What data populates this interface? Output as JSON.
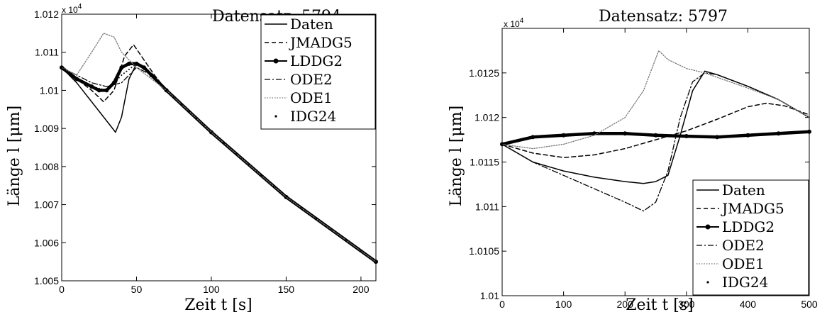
{
  "chart_data": [
    {
      "type": "line",
      "title": "Datensatz: 5794",
      "xlabel": "Zeit t [s]",
      "ylabel": "Länge l [μm]",
      "xlim": [
        0,
        210
      ],
      "ylim": [
        10050,
        10120
      ],
      "y_exponent_label": "x 10",
      "y_exponent_power": "4",
      "xticks": [
        0,
        50,
        100,
        150,
        200
      ],
      "xtick_labels": [
        "0",
        "50",
        "100",
        "150",
        "200"
      ],
      "yticks": [
        10050,
        10060,
        10070,
        10080,
        10090,
        10100,
        10110,
        10120
      ],
      "ytick_labels": [
        "1.005",
        "1.006",
        "1.007",
        "1.008",
        "1.009",
        "1.01",
        "1.011",
        "1.012"
      ],
      "grid": false,
      "legend_position": "top-right",
      "series": [
        {
          "name": "Daten",
          "style": "solid",
          "x": [
            0,
            10,
            20,
            30,
            36,
            40,
            45,
            50,
            55,
            60,
            70,
            100,
            150,
            210
          ],
          "y": [
            10106,
            10102,
            10097,
            10092,
            10089,
            10093,
            10103,
            10107,
            10106,
            10104,
            10100,
            10089,
            10072,
            10055
          ]
        },
        {
          "name": "JMADG5",
          "style": "dash",
          "x": [
            0,
            10,
            20,
            28,
            35,
            42,
            48,
            55,
            62,
            70,
            100,
            150,
            210
          ],
          "y": [
            10106,
            10103,
            10100,
            10097,
            10100,
            10109,
            10112,
            10108,
            10104,
            10100,
            10089,
            10072,
            10055
          ]
        },
        {
          "name": "LDDG2",
          "style": "thick",
          "x": [
            0,
            10,
            20,
            25,
            30,
            35,
            40,
            45,
            50,
            55,
            60,
            70,
            100,
            150,
            210
          ],
          "y": [
            10106,
            10103,
            10101,
            10100,
            10100,
            10102,
            10106,
            10107,
            10107,
            10106,
            10104,
            10100,
            10089,
            10072,
            10055
          ]
        },
        {
          "name": "ODE2",
          "style": "dashdot",
          "x": [
            0,
            10,
            20,
            30,
            40,
            50,
            60,
            70,
            100,
            150,
            210
          ],
          "y": [
            10106,
            10104,
            10102,
            10101,
            10102,
            10106,
            10104,
            10100,
            10089,
            10072,
            10055
          ]
        },
        {
          "name": "ODE1",
          "style": "dotted",
          "x": [
            0,
            10,
            20,
            28,
            35,
            40,
            50,
            60,
            70,
            100,
            150,
            210
          ],
          "y": [
            10106,
            10104,
            10110,
            10115,
            10114,
            10110,
            10106,
            10103,
            10100,
            10089,
            10072,
            10055
          ]
        },
        {
          "name": "IDG24",
          "style": "points",
          "x": [
            0,
            10,
            20,
            30,
            40,
            50,
            60,
            70,
            100,
            150,
            210
          ],
          "y": [
            10106,
            10103,
            10101,
            10100,
            10104,
            10107,
            10104,
            10100,
            10089,
            10072,
            10055
          ]
        }
      ]
    },
    {
      "type": "line",
      "title": "Datensatz: 5797",
      "xlabel": "Zeit t [s]",
      "ylabel": "Länge l [μm]",
      "xlim": [
        0,
        500
      ],
      "ylim": [
        10100,
        10130
      ],
      "y_exponent_label": "x 10",
      "y_exponent_power": "4",
      "xticks": [
        0,
        100,
        200,
        300,
        400,
        500
      ],
      "xtick_labels": [
        "0",
        "100",
        "200",
        "300",
        "400",
        "500"
      ],
      "yticks": [
        10100,
        10105,
        10110,
        10115,
        10120,
        10125
      ],
      "ytick_labels": [
        "1.01",
        "1.0105",
        "1.011",
        "1.0115",
        "1.012",
        "1.0125"
      ],
      "grid": false,
      "legend_position": "bottom-right",
      "series": [
        {
          "name": "Daten",
          "style": "solid",
          "x": [
            0,
            50,
            100,
            150,
            200,
            230,
            250,
            270,
            290,
            310,
            330,
            350,
            400,
            450,
            500
          ],
          "y": [
            10117,
            10115,
            10114,
            10113.3,
            10112.8,
            10112.6,
            10112.8,
            10113.5,
            10118,
            10123,
            10125.2,
            10124.8,
            10123.5,
            10122,
            10120
          ]
        },
        {
          "name": "JMADG5",
          "style": "dash",
          "x": [
            0,
            50,
            100,
            150,
            200,
            250,
            300,
            350,
            400,
            430,
            460,
            500
          ],
          "y": [
            10117,
            10116,
            10115.5,
            10115.8,
            10116.5,
            10117.5,
            10118.5,
            10119.8,
            10121.2,
            10121.6,
            10121.3,
            10120.3
          ]
        },
        {
          "name": "LDDG2",
          "style": "thick",
          "x": [
            0,
            50,
            100,
            150,
            200,
            250,
            300,
            350,
            400,
            450,
            500
          ],
          "y": [
            10117,
            10117.8,
            10118,
            10118.2,
            10118.2,
            10118,
            10117.9,
            10117.8,
            10118,
            10118.2,
            10118.4
          ]
        },
        {
          "name": "ODE2",
          "style": "dashdot",
          "x": [
            0,
            50,
            100,
            150,
            200,
            230,
            250,
            270,
            290,
            310,
            330,
            350,
            400,
            450,
            500
          ],
          "y": [
            10117,
            10115,
            10113.5,
            10112,
            10110.5,
            10109.5,
            10110.5,
            10114,
            10120,
            10124,
            10125,
            10124.8,
            10123.5,
            10122,
            10120
          ]
        },
        {
          "name": "ODE1",
          "style": "dotted",
          "x": [
            0,
            50,
            100,
            150,
            200,
            230,
            255,
            270,
            300,
            330,
            350,
            400,
            450,
            500
          ],
          "y": [
            10117,
            10116.5,
            10117,
            10118,
            10120,
            10123,
            10127.5,
            10126.5,
            10125.5,
            10125,
            10124.5,
            10123.3,
            10122,
            10120
          ]
        },
        {
          "name": "IDG24",
          "style": "points",
          "x": [
            0,
            50,
            100,
            150,
            200,
            250,
            300,
            350,
            400,
            450,
            500
          ],
          "y": [
            10117,
            10117.8,
            10118,
            10118.2,
            10118.2,
            10118,
            10117.9,
            10117.8,
            10118,
            10118.2,
            10118.4
          ]
        }
      ]
    }
  ]
}
